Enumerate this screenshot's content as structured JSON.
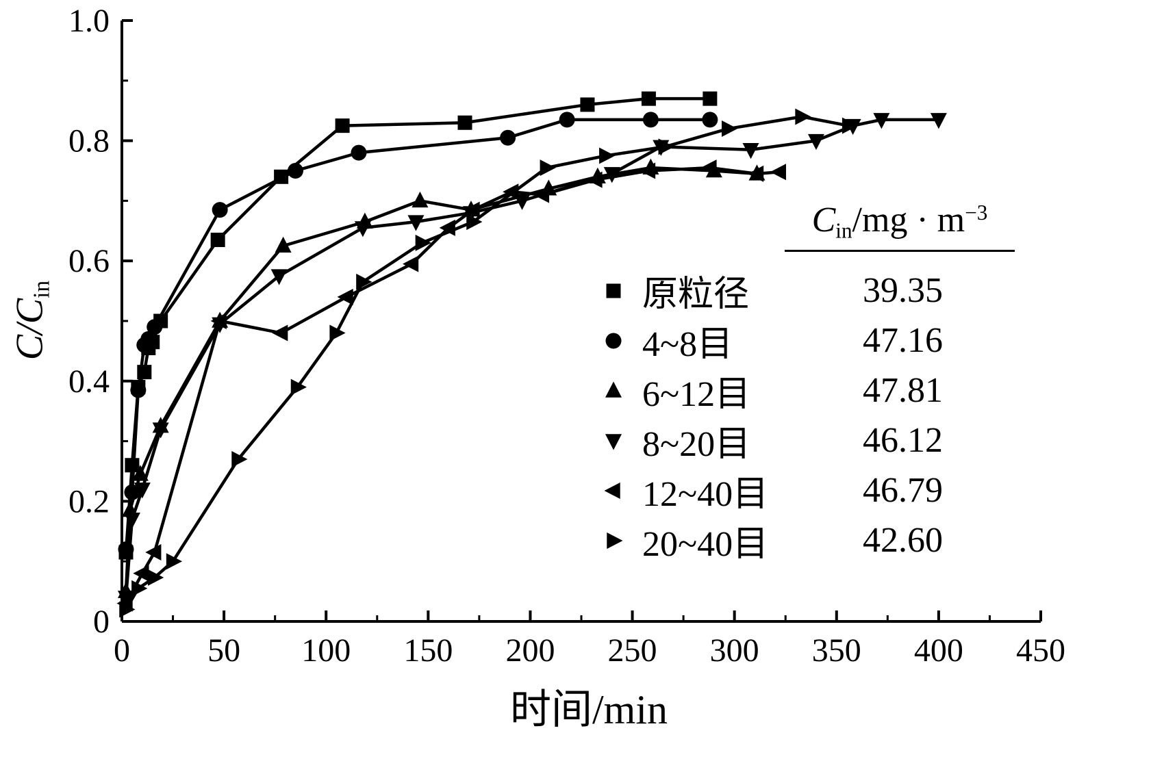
{
  "colors": {
    "foreground": "#000000",
    "background": "#ffffff"
  },
  "labels": {
    "ylabel_main": "C/C",
    "ylabel_sub": "in",
    "xlabel": "时间/min"
  },
  "legend": {
    "header": {
      "c": "C",
      "sub": "in",
      "unit": "/mg · m",
      "sup": "−3"
    }
  },
  "chart_data": {
    "type": "line",
    "title": "",
    "xlabel": "时间/min",
    "ylabel": "C/C_in",
    "xlim": [
      0,
      450
    ],
    "ylim": [
      0,
      1.0
    ],
    "xtick_major": 50,
    "xtick_minor": 25,
    "ytick_major": 0.2,
    "ytick_minor": 0.1,
    "xtick_labels": [
      "0",
      "50",
      "100",
      "150",
      "200",
      "250",
      "300",
      "350",
      "400",
      "450"
    ],
    "ytick_labels": [
      "0",
      "0.2",
      "0.4",
      "0.6",
      "0.8",
      "1.0"
    ],
    "grid": false,
    "legend_position": "inside-right",
    "legend_header": "Cin/mg·m−3",
    "series": [
      {
        "name": "原粒径",
        "cin": "39.35",
        "marker": "square",
        "points": [
          [
            2,
            0.115
          ],
          [
            5,
            0.26
          ],
          [
            8,
            0.39
          ],
          [
            11,
            0.415
          ],
          [
            13,
            0.455
          ],
          [
            15,
            0.465
          ],
          [
            19,
            0.5
          ],
          [
            47,
            0.635
          ],
          [
            78,
            0.74
          ],
          [
            108,
            0.825
          ],
          [
            168,
            0.83
          ],
          [
            228,
            0.86
          ],
          [
            258,
            0.87
          ],
          [
            288,
            0.87
          ]
        ]
      },
      {
        "name": "4~8目",
        "cin": "47.16",
        "marker": "circle",
        "points": [
          [
            2,
            0.12
          ],
          [
            5,
            0.215
          ],
          [
            8,
            0.385
          ],
          [
            11,
            0.46
          ],
          [
            13,
            0.47
          ],
          [
            16,
            0.49
          ],
          [
            48,
            0.685
          ],
          [
            85,
            0.75
          ],
          [
            116,
            0.78
          ],
          [
            189,
            0.805
          ],
          [
            218,
            0.835
          ],
          [
            259,
            0.835
          ],
          [
            288,
            0.835
          ]
        ]
      },
      {
        "name": "6~12目",
        "cin": "47.81",
        "marker": "triangle-up",
        "points": [
          [
            2,
            0.05
          ],
          [
            4,
            0.185
          ],
          [
            9,
            0.245
          ],
          [
            19,
            0.325
          ],
          [
            48,
            0.5
          ],
          [
            79,
            0.625
          ],
          [
            119,
            0.665
          ],
          [
            146,
            0.7
          ],
          [
            171,
            0.685
          ],
          [
            209,
            0.72
          ],
          [
            233,
            0.74
          ],
          [
            259,
            0.755
          ],
          [
            290,
            0.75
          ],
          [
            311,
            0.745
          ]
        ]
      },
      {
        "name": "8~20目",
        "cin": "46.12",
        "marker": "triangle-down",
        "points": [
          [
            2,
            0.04
          ],
          [
            5,
            0.17
          ],
          [
            10,
            0.22
          ],
          [
            19,
            0.32
          ],
          [
            48,
            0.495
          ],
          [
            77,
            0.575
          ],
          [
            118,
            0.655
          ],
          [
            144,
            0.665
          ],
          [
            171,
            0.68
          ],
          [
            196,
            0.7
          ],
          [
            240,
            0.745
          ],
          [
            264,
            0.79
          ],
          [
            308,
            0.785
          ],
          [
            340,
            0.8
          ],
          [
            358,
            0.825
          ],
          [
            372,
            0.835
          ],
          [
            400,
            0.835
          ]
        ]
      },
      {
        "name": "12~40目",
        "cin": "46.79",
        "marker": "triangle-left",
        "points": [
          [
            2,
            0.03
          ],
          [
            10,
            0.08
          ],
          [
            16,
            0.115
          ],
          [
            48,
            0.5
          ],
          [
            78,
            0.48
          ],
          [
            110,
            0.54
          ],
          [
            142,
            0.595
          ],
          [
            160,
            0.655
          ],
          [
            172,
            0.685
          ],
          [
            191,
            0.715
          ],
          [
            206,
            0.71
          ],
          [
            232,
            0.735
          ],
          [
            258,
            0.75
          ],
          [
            288,
            0.755
          ],
          [
            311,
            0.745
          ],
          [
            322,
            0.748
          ]
        ]
      },
      {
        "name": "20~40目",
        "cin": "42.60",
        "marker": "triangle-right",
        "points": [
          [
            2,
            0.02
          ],
          [
            8,
            0.055
          ],
          [
            16,
            0.073
          ],
          [
            25,
            0.1
          ],
          [
            57,
            0.27
          ],
          [
            86,
            0.39
          ],
          [
            105,
            0.48
          ],
          [
            118,
            0.565
          ],
          [
            147,
            0.63
          ],
          [
            172,
            0.665
          ],
          [
            208,
            0.755
          ],
          [
            237,
            0.775
          ],
          [
            266,
            0.79
          ],
          [
            297,
            0.82
          ],
          [
            333,
            0.84
          ],
          [
            356,
            0.825
          ]
        ]
      }
    ]
  }
}
